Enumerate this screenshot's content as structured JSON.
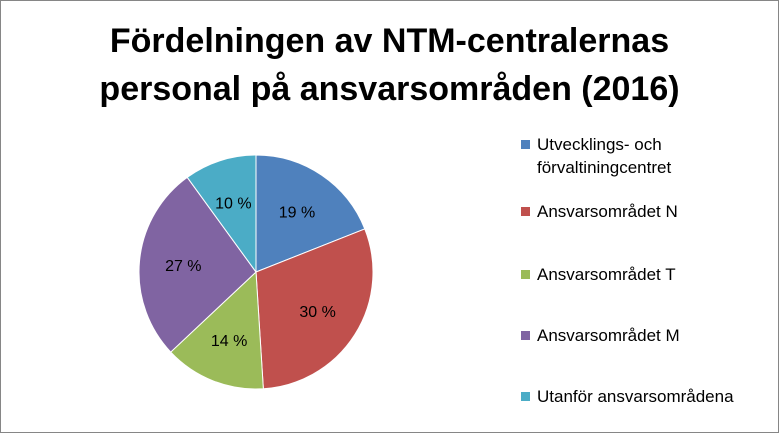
{
  "chart_data": {
    "type": "pie",
    "title": [
      "Fördelningen av NTM-centralernas",
      "personal på ansvarsområden (2016)"
    ],
    "categories": [
      "Utvecklings- och förvaltiningcentret",
      "Ansvarsområdet N",
      "Ansvarsområdet T",
      "Ansvarsområdet M",
      "Utanför ansvarsområdena"
    ],
    "values": [
      19,
      30,
      14,
      27,
      10
    ],
    "data_labels": [
      "19 %",
      "30 %",
      "14 %",
      "27 %",
      "10 %"
    ],
    "colors": [
      "#4f81bd",
      "#c0504d",
      "#9bbb59",
      "#8064a2",
      "#4bacc6"
    ],
    "legend_position": "right",
    "legend_lines": [
      [
        "Utvecklings- och",
        "förvaltiningcentret"
      ],
      [
        "Ansvarsområdet N"
      ],
      [
        "Ansvarsområdet T"
      ],
      [
        "Ansvarsområdet M"
      ],
      [
        "Utanför ansvarsområdena"
      ]
    ]
  }
}
